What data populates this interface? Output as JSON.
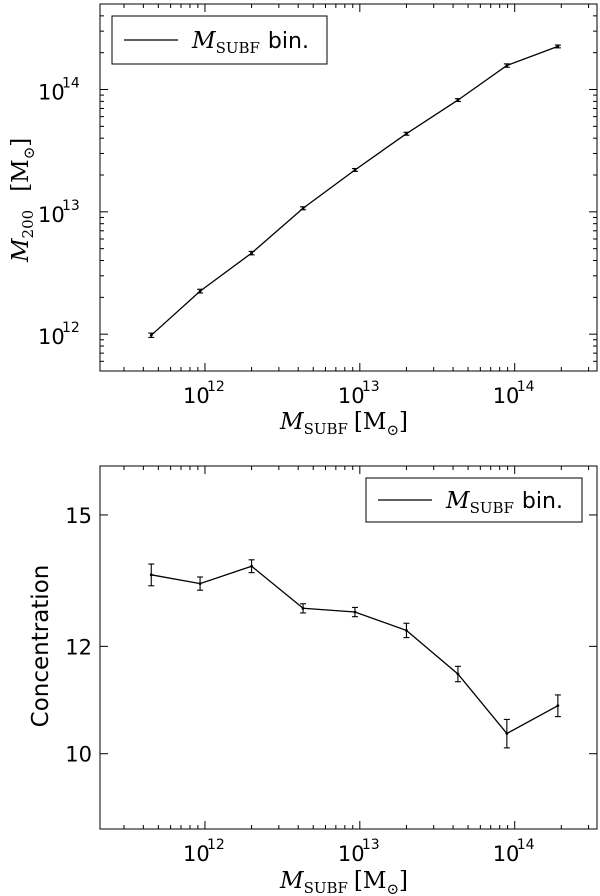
{
  "chart_data": [
    {
      "type": "line",
      "xscale": "log",
      "yscale": "log",
      "xlim": [
        210000000000.0,
        340000000000000.0
      ],
      "ylim": [
        500000000000.0,
        500000000000000.0
      ],
      "xticks": [
        {
          "value": 1000000000000.0,
          "base": "10",
          "exp": "12"
        },
        {
          "value": 10000000000000.0,
          "base": "10",
          "exp": "13"
        },
        {
          "value": 100000000000000.0,
          "base": "10",
          "exp": "14"
        }
      ],
      "yticks": [
        {
          "value": 1000000000000.0,
          "base": "10",
          "exp": "12"
        },
        {
          "value": 10000000000000.0,
          "base": "10",
          "exp": "13"
        },
        {
          "value": 100000000000000.0,
          "base": "10",
          "exp": "14"
        }
      ],
      "xlabel": {
        "sym": "M",
        "sub": "SUBF",
        "unit": "[M",
        "sun": "⊙",
        "close": "]"
      },
      "ylabel": {
        "sym": "M",
        "sub": "200",
        "unit": "[M",
        "sun": "⊙",
        "close": "]"
      },
      "legend": {
        "placement": "top-left",
        "sym": "M",
        "sub": "SUBF",
        "text": "bin."
      },
      "series": [
        {
          "x": [
            450000000000.0,
            930000000000.0,
            2000000000000.0,
            4300000000000.0,
            9300000000000.0,
            20000000000000.0,
            43000000000000.0,
            89000000000000.0,
            190000000000000.0
          ],
          "y": [
            980000000000.0,
            2250000000000.0,
            4600000000000.0,
            10700000000000.0,
            22000000000000.0,
            43500000000000.0,
            82000000000000.0,
            157000000000000.0,
            225000000000000.0
          ],
          "yerr": [
            40000000000.0,
            80000000000.0,
            150000000000.0,
            300000000000.0,
            600000000000.0,
            1200000000000.0,
            2200000000000.0,
            5000000000000.0,
            6000000000000.0
          ]
        }
      ]
    },
    {
      "type": "line",
      "xscale": "log",
      "yscale": "log",
      "xlim": [
        210000000000.0,
        340000000000000.0
      ],
      "ylim": [
        8.8,
        16.3
      ],
      "xticks": [
        {
          "value": 1000000000000.0,
          "base": "10",
          "exp": "12"
        },
        {
          "value": 10000000000000.0,
          "base": "10",
          "exp": "13"
        },
        {
          "value": 100000000000000.0,
          "base": "10",
          "exp": "14"
        }
      ],
      "yticks": [
        {
          "value": 10,
          "label": "10"
        },
        {
          "value": 12,
          "label": "12"
        },
        {
          "value": 15,
          "label": "15"
        }
      ],
      "xlabel": {
        "sym": "M",
        "sub": "SUBF",
        "unit": "[M",
        "sun": "⊙",
        "close": "]"
      },
      "ylabel": {
        "text": "Concentration"
      },
      "legend": {
        "placement": "top-right",
        "sym": "M",
        "sub": "SUBF",
        "text": "bin."
      },
      "series": [
        {
          "x": [
            450000000000.0,
            930000000000.0,
            2000000000000.0,
            4300000000000.0,
            9300000000000.0,
            20000000000000.0,
            43000000000000.0,
            89000000000000.0,
            190000000000000.0
          ],
          "y": [
            13.55,
            13.35,
            13.75,
            12.8,
            12.72,
            12.33,
            11.45,
            10.35,
            10.85
          ],
          "yerr": [
            0.25,
            0.15,
            0.15,
            0.1,
            0.1,
            0.15,
            0.15,
            0.25,
            0.2
          ]
        }
      ]
    }
  ]
}
